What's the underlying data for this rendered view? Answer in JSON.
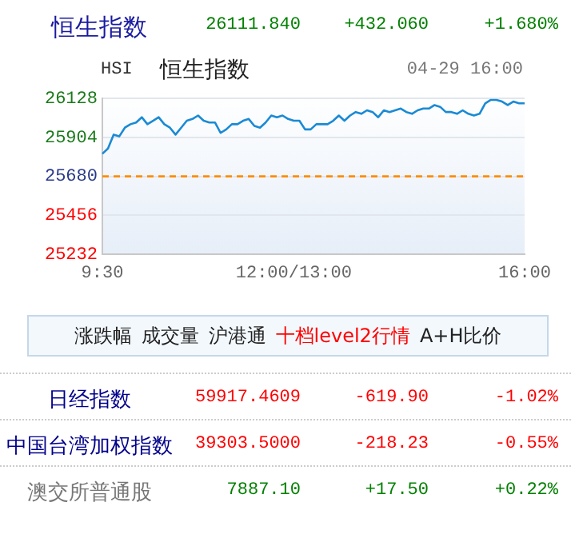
{
  "chart_data": {
    "type": "line",
    "title": "恒生指数",
    "categories": [
      "9:30",
      null,
      null,
      null,
      null,
      null,
      null,
      null,
      null,
      null,
      null,
      null,
      null,
      null,
      null,
      null,
      null,
      null,
      null,
      null,
      null,
      null,
      null,
      null,
      null,
      null,
      null,
      null,
      null,
      null,
      null,
      null,
      null,
      null,
      "12:00/13:00",
      null,
      null,
      null,
      null,
      null,
      null,
      null,
      null,
      null,
      null,
      null,
      null,
      null,
      null,
      null,
      null,
      null,
      null,
      null,
      null,
      null,
      null,
      null,
      null,
      null,
      null,
      null,
      null,
      null,
      null,
      null,
      null,
      null,
      null,
      null,
      null,
      null,
      null,
      null,
      null,
      "16:00"
    ],
    "series": [
      {
        "color": "#1a8ad4",
        "values": [
          25810,
          25840,
          25920,
          25910,
          25960,
          25980,
          25990,
          26020,
          25980,
          26000,
          26020,
          25980,
          25960,
          25920,
          25960,
          26000,
          26010,
          26030,
          26000,
          25990,
          25990,
          25930,
          25950,
          25980,
          25980,
          26000,
          26010,
          25970,
          25960,
          25990,
          26030,
          26020,
          26030,
          26010,
          26000,
          26000,
          25950,
          25950,
          25980,
          25980,
          25980,
          26000,
          26030,
          26000,
          26030,
          26050,
          26040,
          26060,
          26050,
          26020,
          26060,
          26050,
          26060,
          26070,
          26050,
          26040,
          26060,
          26070,
          26070,
          26090,
          26080,
          26050,
          26050,
          26040,
          26060,
          26040,
          26030,
          26040,
          26100,
          26120,
          26120,
          26110,
          26090,
          26110,
          26100,
          26100
        ]
      }
    ],
    "ylim": [
      25232,
      26128
    ],
    "yticks": [
      25232,
      25456,
      25680,
      25904,
      26128
    ],
    "ref_lines": [
      {
        "axis": "y",
        "value": 25680,
        "color": "#ff8c00",
        "line_style": "dashed"
      }
    ],
    "grid": "y",
    "legend": false,
    "marker": "none",
    "line_style": "solid",
    "annotations": [
      "26111.840",
      "+432.060",
      "+1.680%",
      "HSI",
      "恒生指数",
      "04-29 16:00",
      "涨跌幅",
      "成交量",
      "沪港通",
      "十档level2行情",
      "A+H比价",
      "日经指数",
      "59917.4609",
      "-619.90",
      "-1.02%",
      "中国台湾加权指数",
      "39303.5000",
      "-218.23",
      "-0.55%",
      "澳交所普通股",
      "7887.10",
      "+17.50",
      "+0.22%"
    ]
  }
}
